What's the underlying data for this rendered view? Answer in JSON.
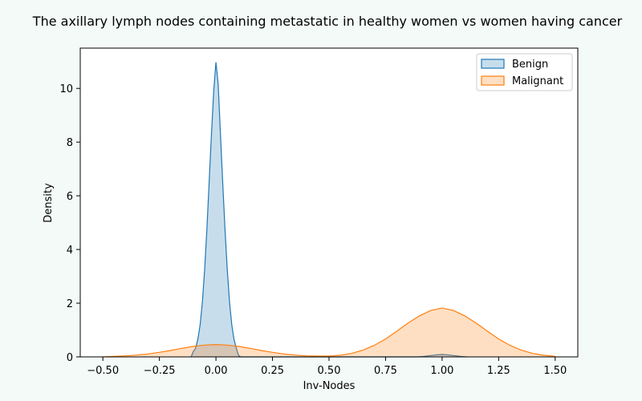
{
  "chart_data": {
    "type": "area",
    "title": "The axillary lymph nodes containing metastatic in healthy women vs  women having cancer",
    "xlabel": "Inv-Nodes",
    "ylabel": "Density",
    "xlim": [
      -0.6,
      1.6
    ],
    "ylim": [
      0,
      11.5
    ],
    "xticks": [
      -0.5,
      -0.25,
      0.0,
      0.25,
      0.5,
      0.75,
      1.0,
      1.25,
      1.5
    ],
    "xtick_labels": [
      "−0.50",
      "−0.25",
      "0.00",
      "0.25",
      "0.50",
      "0.75",
      "1.00",
      "1.25",
      "1.50"
    ],
    "yticks": [
      0,
      2,
      4,
      6,
      8,
      10
    ],
    "ytick_labels": [
      "0",
      "2",
      "4",
      "6",
      "8",
      "10"
    ],
    "grid": false,
    "legend": "top-right",
    "series": [
      {
        "name": "Benign",
        "color": "#1f77b4",
        "x": [
          -0.11,
          -0.1,
          -0.09,
          -0.08,
          -0.07,
          -0.06,
          -0.05,
          -0.04,
          -0.03,
          -0.02,
          -0.01,
          0.0,
          0.01,
          0.02,
          0.03,
          0.04,
          0.05,
          0.06,
          0.07,
          0.08,
          0.09,
          0.1,
          0.11,
          0.89,
          0.92,
          0.95,
          0.98,
          1.0,
          1.02,
          1.05,
          1.08,
          1.11
        ],
        "y": [
          0.0,
          0.2,
          0.32,
          0.65,
          1.2,
          2.05,
          3.25,
          4.75,
          6.5,
          8.3,
          9.9,
          10.97,
          10.15,
          8.3,
          6.5,
          4.75,
          3.25,
          2.05,
          1.2,
          0.65,
          0.32,
          0.05,
          0.0,
          0.0,
          0.02,
          0.05,
          0.08,
          0.09,
          0.08,
          0.05,
          0.02,
          0.0
        ]
      },
      {
        "name": "Malignant",
        "color": "#ff7f0e",
        "x": [
          -0.5,
          -0.45,
          -0.4,
          -0.35,
          -0.3,
          -0.25,
          -0.2,
          -0.15,
          -0.1,
          -0.05,
          0.0,
          0.05,
          0.1,
          0.15,
          0.2,
          0.25,
          0.3,
          0.35,
          0.4,
          0.45,
          0.5,
          0.55,
          0.6,
          0.65,
          0.7,
          0.75,
          0.8,
          0.85,
          0.9,
          0.95,
          1.0,
          1.05,
          1.1,
          1.15,
          1.2,
          1.25,
          1.3,
          1.35,
          1.4,
          1.45,
          1.5
        ],
        "y": [
          0.0,
          0.02,
          0.04,
          0.07,
          0.11,
          0.17,
          0.24,
          0.32,
          0.39,
          0.44,
          0.46,
          0.44,
          0.39,
          0.32,
          0.24,
          0.17,
          0.11,
          0.07,
          0.04,
          0.03,
          0.03,
          0.06,
          0.13,
          0.25,
          0.43,
          0.67,
          0.96,
          1.26,
          1.53,
          1.73,
          1.82,
          1.73,
          1.53,
          1.26,
          0.96,
          0.67,
          0.43,
          0.25,
          0.13,
          0.06,
          0.02
        ]
      }
    ]
  }
}
